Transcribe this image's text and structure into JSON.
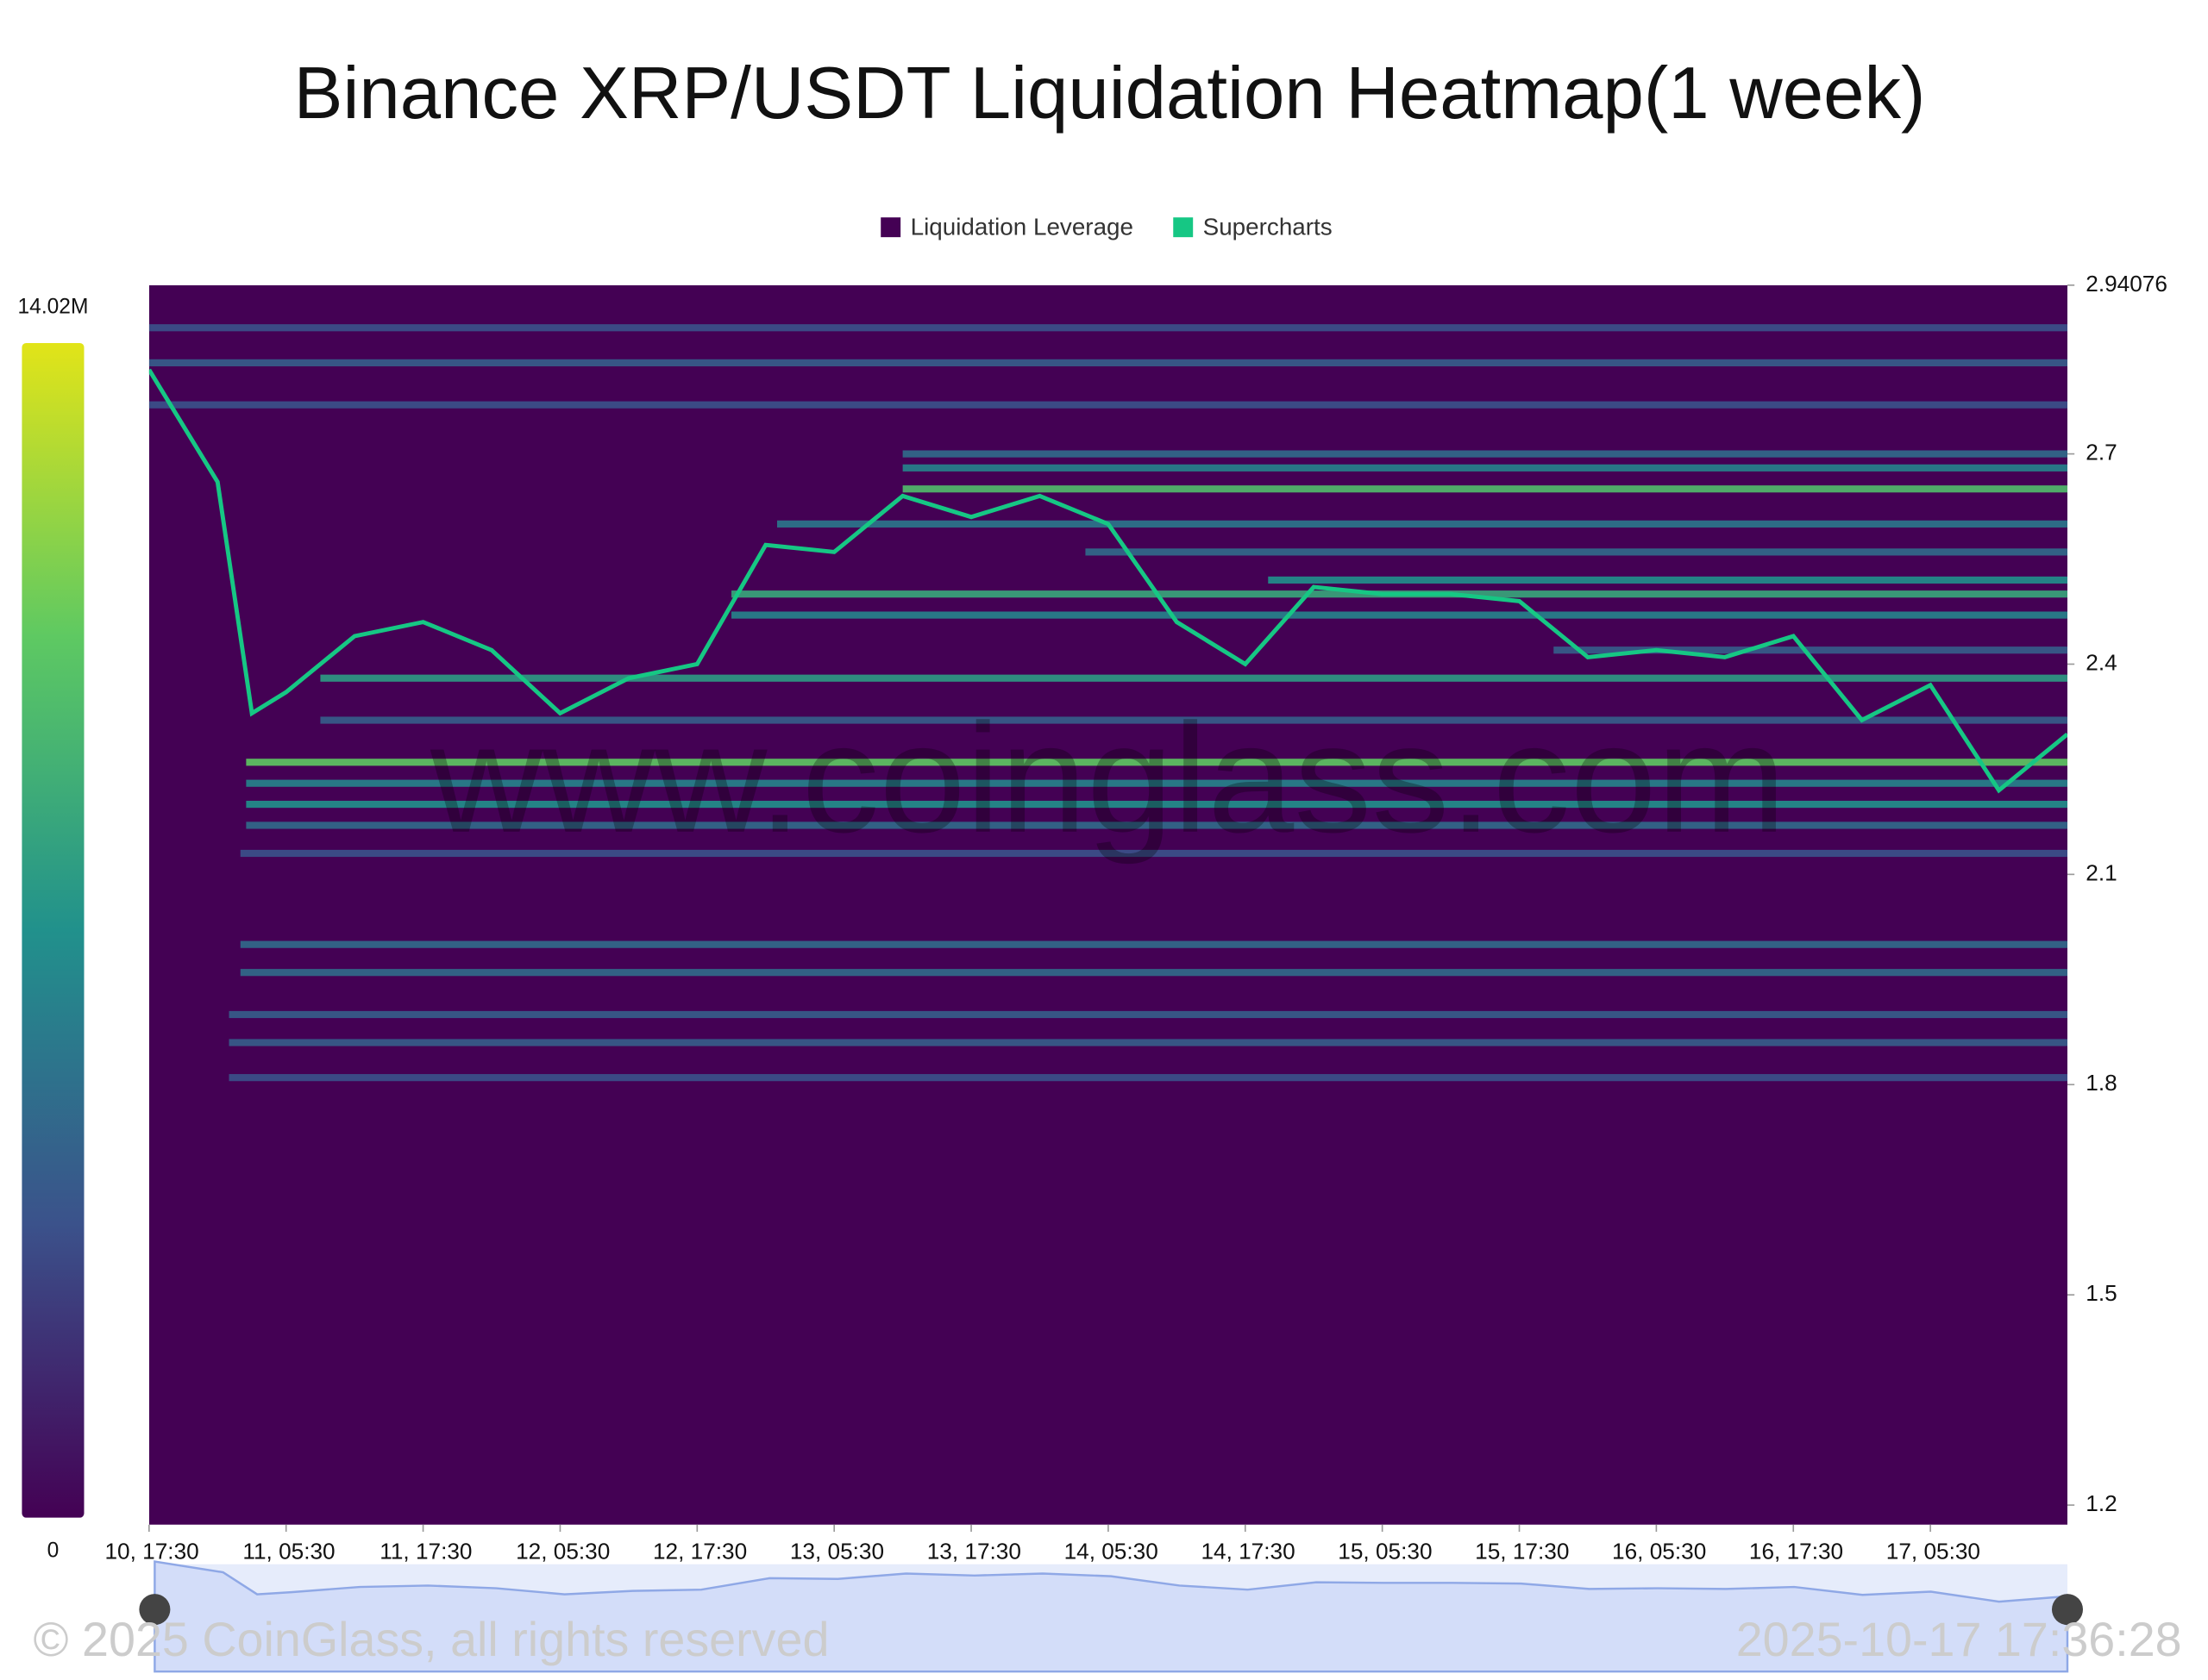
{
  "chart_data": {
    "type": "heatmap",
    "title": "Binance XRP/USDT Liquidation Heatmap(1 week)",
    "legend": [
      {
        "name": "Liquidation Leverage",
        "color": "#440154"
      },
      {
        "name": "Supercharts",
        "color": "#16c784"
      }
    ],
    "colorbar": {
      "min": 0,
      "max": {
        "value": 14020000,
        "label": "14.02M"
      }
    },
    "ylim": [
      1.172,
      2.94076
    ],
    "yticks": [
      2.94076,
      2.7,
      2.4,
      2.1,
      1.8,
      1.5,
      1.2
    ],
    "xlim": [
      0,
      168
    ],
    "xticks": [
      {
        "value": 0,
        "label": "10, 17:30"
      },
      {
        "value": 12,
        "label": "11, 05:30"
      },
      {
        "value": 24,
        "label": "11, 17:30"
      },
      {
        "value": 36,
        "label": "12, 05:30"
      },
      {
        "value": 48,
        "label": "12, 17:30"
      },
      {
        "value": 60,
        "label": "13, 05:30"
      },
      {
        "value": 72,
        "label": "13, 17:30"
      },
      {
        "value": 84,
        "label": "14, 05:30"
      },
      {
        "value": 96,
        "label": "14, 17:30"
      },
      {
        "value": 108,
        "label": "15, 05:30"
      },
      {
        "value": 120,
        "label": "15, 17:30"
      },
      {
        "value": 132,
        "label": "16, 05:30"
      },
      {
        "value": 144,
        "label": "16, 17:30"
      },
      {
        "value": 156,
        "label": "17, 05:30"
      }
    ],
    "bands": [
      {
        "price": 2.88,
        "value": 3500000,
        "start": 0
      },
      {
        "price": 2.83,
        "value": 4200000,
        "start": 0
      },
      {
        "price": 2.77,
        "value": 3500000,
        "start": 0
      },
      {
        "price": 2.7,
        "value": 4900000,
        "start": 66
      },
      {
        "price": 2.68,
        "value": 6300000,
        "start": 66
      },
      {
        "price": 2.65,
        "value": 9800000,
        "start": 66
      },
      {
        "price": 2.6,
        "value": 5600000,
        "start": 55
      },
      {
        "price": 2.56,
        "value": 4900000,
        "start": 82
      },
      {
        "price": 2.52,
        "value": 7000000,
        "start": 98
      },
      {
        "price": 2.5,
        "value": 8400000,
        "start": 51
      },
      {
        "price": 2.47,
        "value": 6300000,
        "start": 51
      },
      {
        "price": 2.42,
        "value": 4200000,
        "start": 123
      },
      {
        "price": 2.38,
        "value": 7700000,
        "start": 15
      },
      {
        "price": 2.32,
        "value": 4200000,
        "start": 15
      },
      {
        "price": 2.26,
        "value": 10500000,
        "start": 8.5
      },
      {
        "price": 2.23,
        "value": 6300000,
        "start": 8.5
      },
      {
        "price": 2.2,
        "value": 7000000,
        "start": 8.5
      },
      {
        "price": 2.17,
        "value": 4900000,
        "start": 8.5
      },
      {
        "price": 2.13,
        "value": 3500000,
        "start": 8
      },
      {
        "price": 2.0,
        "value": 4900000,
        "start": 8
      },
      {
        "price": 1.96,
        "value": 4900000,
        "start": 8
      },
      {
        "price": 1.9,
        "value": 4200000,
        "start": 7
      },
      {
        "price": 1.86,
        "value": 4200000,
        "start": 7
      },
      {
        "price": 1.81,
        "value": 3500000,
        "start": 7
      }
    ],
    "price": {
      "x": [
        0,
        6,
        9,
        12,
        18,
        24,
        30,
        36,
        42,
        48,
        54,
        60,
        66,
        72,
        78,
        84,
        90,
        96,
        102,
        108,
        114,
        120,
        126,
        132,
        138,
        144,
        150,
        156,
        162,
        168
      ],
      "values": [
        2.82,
        2.66,
        2.33,
        2.36,
        2.44,
        2.46,
        2.42,
        2.33,
        2.38,
        2.4,
        2.57,
        2.56,
        2.64,
        2.61,
        2.64,
        2.6,
        2.46,
        2.4,
        2.51,
        2.5,
        2.5,
        2.49,
        2.41,
        2.42,
        2.41,
        2.44,
        2.32,
        2.37,
        2.22,
        2.3
      ]
    },
    "watermark": "www.coinglass.com",
    "copyright": "© 2025 CoinGlass, all rights reserved",
    "timestamp": "2025-10-17 17:36:28"
  }
}
